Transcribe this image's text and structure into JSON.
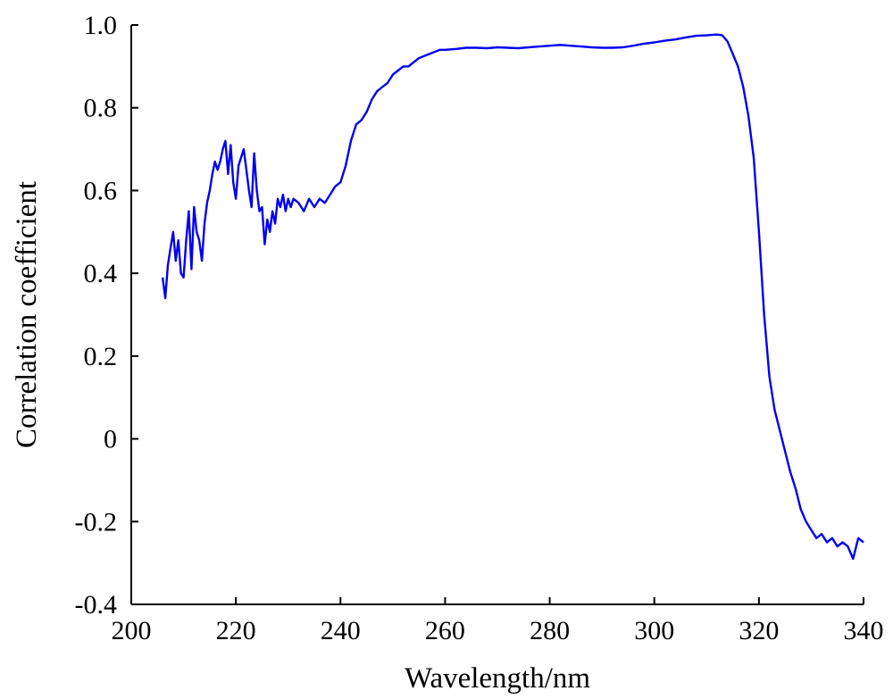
{
  "chart_data": {
    "type": "line",
    "title": "",
    "xlabel": "Wavelength/nm",
    "ylabel": "Correlation coefficient",
    "xlim": [
      200,
      340
    ],
    "ylim": [
      -0.4,
      1.0
    ],
    "xticks": [
      "200",
      "220",
      "240",
      "260",
      "280",
      "300",
      "320",
      "340"
    ],
    "yticks": [
      "-0.4",
      "-0.2",
      "0",
      "0.2",
      "0.4",
      "0.6",
      "0.8",
      "1.0"
    ],
    "grid": false,
    "legend": "none",
    "series": [
      {
        "color": "#0000ee",
        "x": [
          206,
          206.5,
          207,
          207.5,
          208,
          208.5,
          209,
          209.5,
          210,
          210.5,
          211,
          211.5,
          212,
          212.5,
          213,
          213.5,
          214,
          214.5,
          215,
          215.5,
          216,
          216.5,
          217,
          217.5,
          218,
          218.5,
          219,
          219.5,
          220,
          220.5,
          221,
          221.5,
          222,
          222.5,
          223,
          223.5,
          224,
          224.5,
          225,
          225.5,
          226,
          226.5,
          227,
          227.5,
          228,
          228.5,
          229,
          229.5,
          230,
          230.5,
          231,
          232,
          233,
          234,
          235,
          236,
          237,
          238,
          239,
          240,
          241,
          242,
          243,
          244,
          245,
          246,
          247,
          248,
          249,
          250,
          251,
          252,
          253,
          254,
          255,
          256,
          257,
          258,
          259,
          260,
          262,
          264,
          266,
          268,
          270,
          272,
          274,
          276,
          278,
          280,
          282,
          284,
          286,
          288,
          290,
          292,
          294,
          296,
          298,
          300,
          302,
          304,
          306,
          308,
          310,
          311,
          312,
          313,
          314,
          315,
          316,
          317,
          318,
          319,
          320,
          321,
          322,
          323,
          324,
          325,
          326,
          327,
          328,
          329,
          330,
          331,
          332,
          333,
          334,
          335,
          336,
          337,
          338,
          339,
          340
        ],
        "y": [
          0.39,
          0.34,
          0.42,
          0.46,
          0.5,
          0.43,
          0.48,
          0.4,
          0.39,
          0.48,
          0.55,
          0.41,
          0.56,
          0.5,
          0.48,
          0.43,
          0.52,
          0.57,
          0.6,
          0.64,
          0.67,
          0.65,
          0.67,
          0.7,
          0.72,
          0.64,
          0.71,
          0.62,
          0.58,
          0.66,
          0.68,
          0.7,
          0.65,
          0.6,
          0.56,
          0.69,
          0.6,
          0.55,
          0.56,
          0.47,
          0.53,
          0.5,
          0.55,
          0.52,
          0.58,
          0.56,
          0.59,
          0.55,
          0.58,
          0.56,
          0.58,
          0.57,
          0.55,
          0.58,
          0.56,
          0.58,
          0.57,
          0.59,
          0.61,
          0.62,
          0.66,
          0.72,
          0.76,
          0.77,
          0.79,
          0.82,
          0.84,
          0.85,
          0.86,
          0.88,
          0.89,
          0.9,
          0.9,
          0.91,
          0.92,
          0.925,
          0.93,
          0.935,
          0.94,
          0.94,
          0.942,
          0.945,
          0.945,
          0.944,
          0.946,
          0.945,
          0.944,
          0.946,
          0.948,
          0.95,
          0.952,
          0.95,
          0.948,
          0.946,
          0.945,
          0.945,
          0.946,
          0.95,
          0.955,
          0.958,
          0.962,
          0.965,
          0.97,
          0.974,
          0.975,
          0.976,
          0.977,
          0.975,
          0.96,
          0.93,
          0.9,
          0.85,
          0.78,
          0.68,
          0.5,
          0.3,
          0.15,
          0.07,
          0.02,
          -0.03,
          -0.08,
          -0.12,
          -0.17,
          -0.2,
          -0.22,
          -0.24,
          -0.23,
          -0.25,
          -0.24,
          -0.26,
          -0.25,
          -0.26,
          -0.29,
          -0.24,
          -0.25
        ]
      }
    ]
  }
}
